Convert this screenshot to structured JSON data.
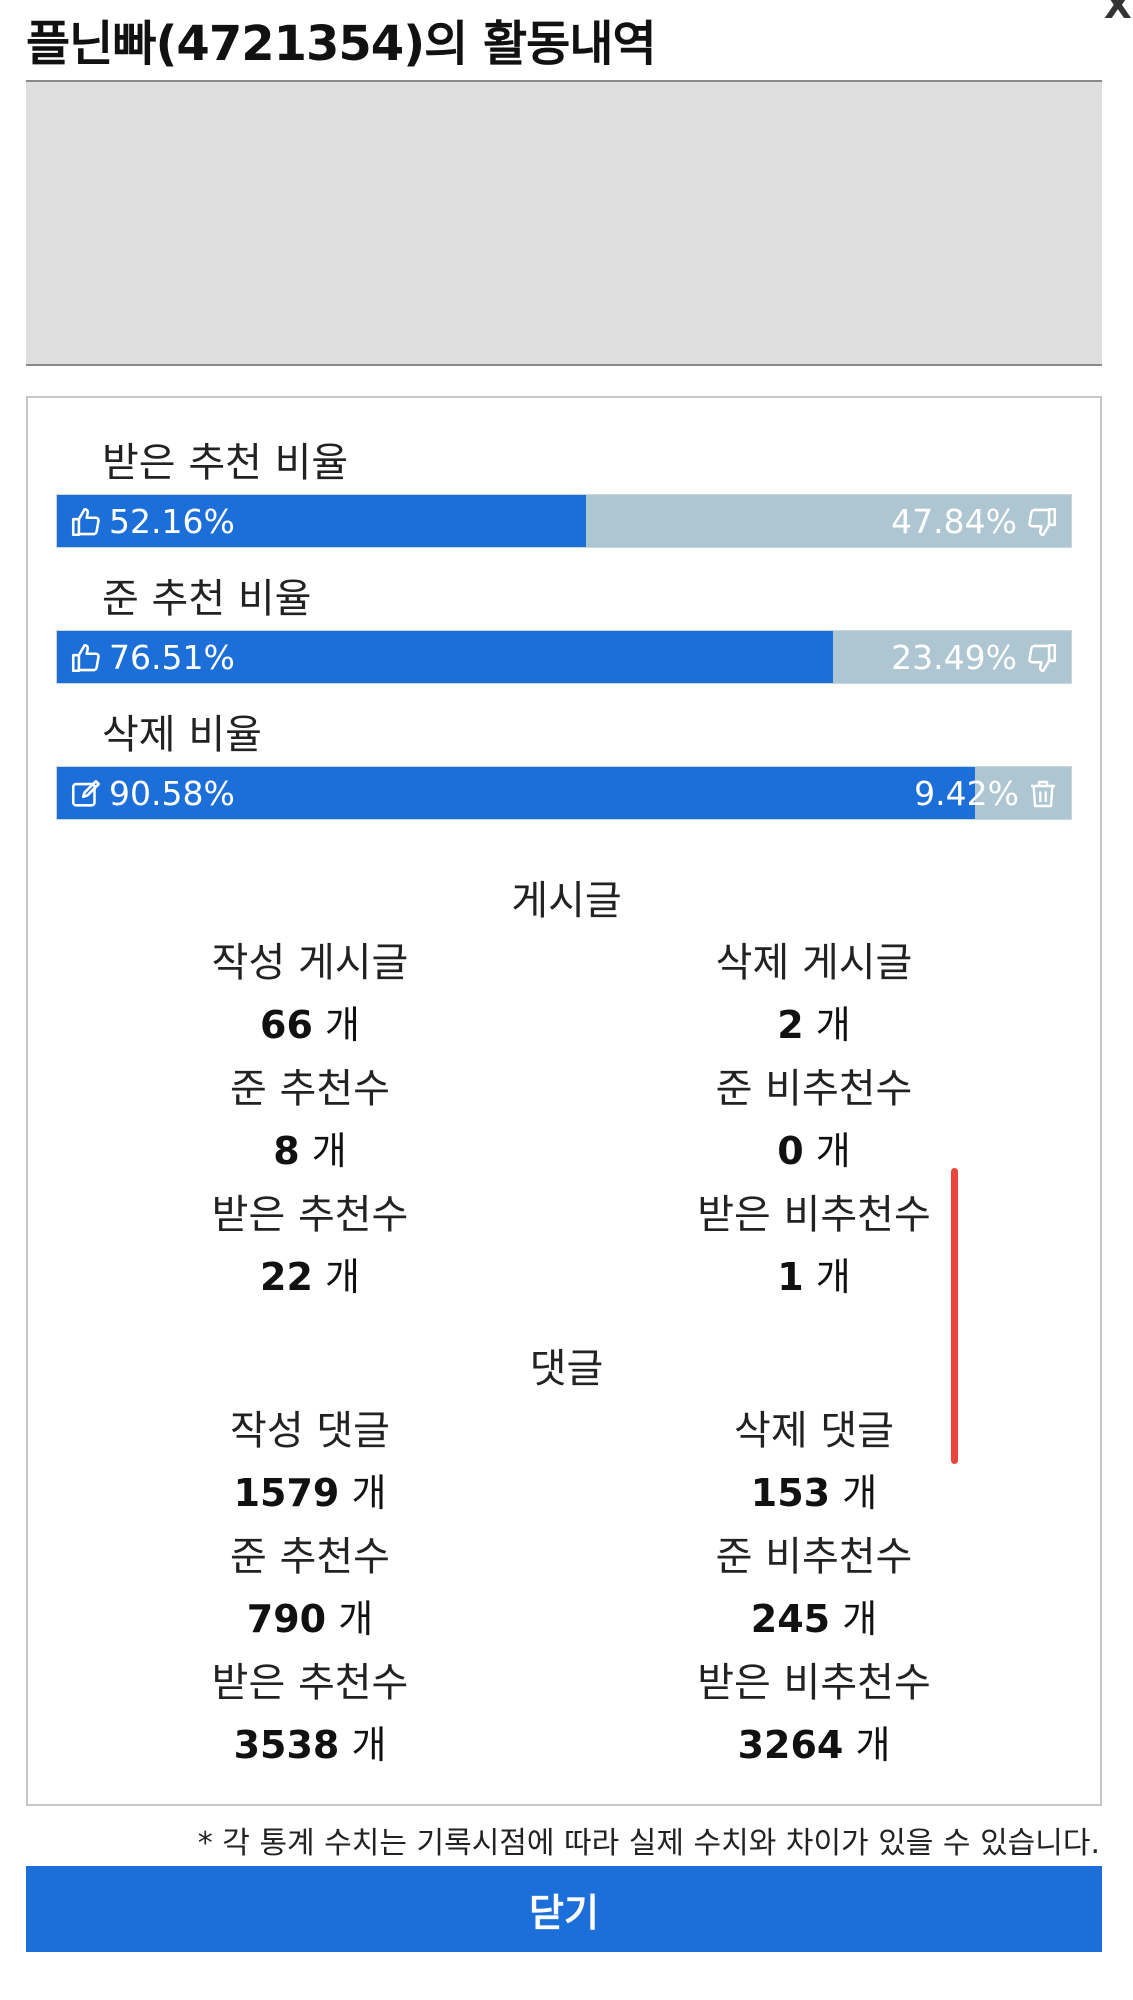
{
  "header": {
    "title": "플닌빠(4721354)의 활동내역",
    "close_glyph": "X"
  },
  "ratios": [
    {
      "label": "받은 추천 비율",
      "left_value": "52.16%",
      "right_value": "47.84%",
      "fill_percent": 52.16,
      "left_icon": "thumbs-up-icon",
      "right_icon": "thumbs-down-icon"
    },
    {
      "label": "준 추천 비율",
      "left_value": "76.51%",
      "right_value": "23.49%",
      "fill_percent": 76.51,
      "left_icon": "thumbs-up-icon",
      "right_icon": "thumbs-down-icon"
    },
    {
      "label": "삭제 비율",
      "left_value": "90.58%",
      "right_value": "9.42%",
      "fill_percent": 90.58,
      "left_icon": "edit-icon",
      "right_icon": "trash-icon"
    }
  ],
  "posts": {
    "title": "게시글",
    "unit": "개",
    "stats": [
      {
        "label": "작성 게시글",
        "value": "66"
      },
      {
        "label": "삭제 게시글",
        "value": "2"
      },
      {
        "label": "준 추천수",
        "value": "8"
      },
      {
        "label": "준 비추천수",
        "value": "0"
      },
      {
        "label": "받은 추천수",
        "value": "22"
      },
      {
        "label": "받은 비추천수",
        "value": "1"
      }
    ]
  },
  "comments": {
    "title": "댓글",
    "unit": "개",
    "stats": [
      {
        "label": "작성 댓글",
        "value": "1579"
      },
      {
        "label": "삭제 댓글",
        "value": "153"
      },
      {
        "label": "준 추천수",
        "value": "790"
      },
      {
        "label": "준 비추천수",
        "value": "245"
      },
      {
        "label": "받은 추천수",
        "value": "3538"
      },
      {
        "label": "받은 비추천수",
        "value": "3264"
      }
    ]
  },
  "footer": {
    "note": "* 각 통계 수치는 기록시점에 따라 실제 수치와 차이가 있을 수 있습니다.",
    "close_label": "닫기"
  },
  "colors": {
    "accent": "#1c6fd9",
    "bar_bg": "#adc6d2",
    "annotation": "#e8453c"
  }
}
